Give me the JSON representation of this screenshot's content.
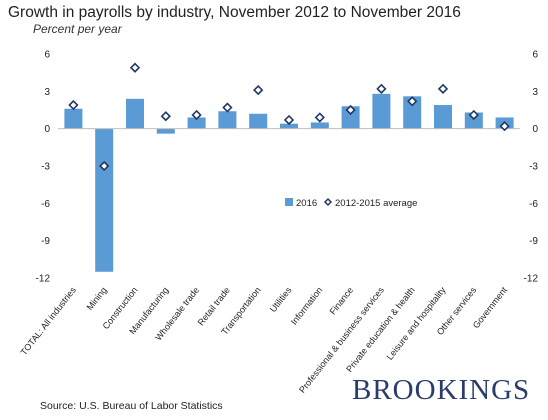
{
  "chart_data": {
    "type": "bar",
    "title": "Growth in payrolls by industry, November 2012 to November 2016",
    "subtitle": "Percent per year",
    "source": "Source: U.S. Bureau of Labor Statistics",
    "brand": "BROOKINGS",
    "categories": [
      "TOTAL: All industries",
      "Mining",
      "Construction",
      "Manufacturing",
      "Wholesale trade",
      "Retail trade",
      "Transportation",
      "Utilities",
      "Information",
      "Finance",
      "Professional & business services",
      "Private education & health",
      "Leisure and hospitality",
      "Other services",
      "Government"
    ],
    "series": [
      {
        "name": "2016",
        "type": "bar",
        "color": "#5b9bd5",
        "values": [
          1.6,
          -11.5,
          2.4,
          -0.4,
          0.9,
          1.4,
          1.2,
          0.4,
          0.5,
          1.8,
          2.8,
          2.6,
          1.9,
          1.3,
          0.9
        ]
      },
      {
        "name": "2012-2015 average",
        "type": "scatter",
        "marker": "diamond",
        "color": "#1f3864",
        "values": [
          1.9,
          -3.0,
          4.9,
          1.0,
          1.1,
          1.7,
          3.1,
          0.7,
          0.9,
          1.5,
          3.2,
          2.2,
          3.2,
          1.1,
          0.2
        ]
      }
    ],
    "ylim": [
      -12,
      6
    ],
    "yticks": [
      -12,
      -9,
      -6,
      -3,
      0,
      3,
      6
    ],
    "legend_position": "center-right"
  }
}
